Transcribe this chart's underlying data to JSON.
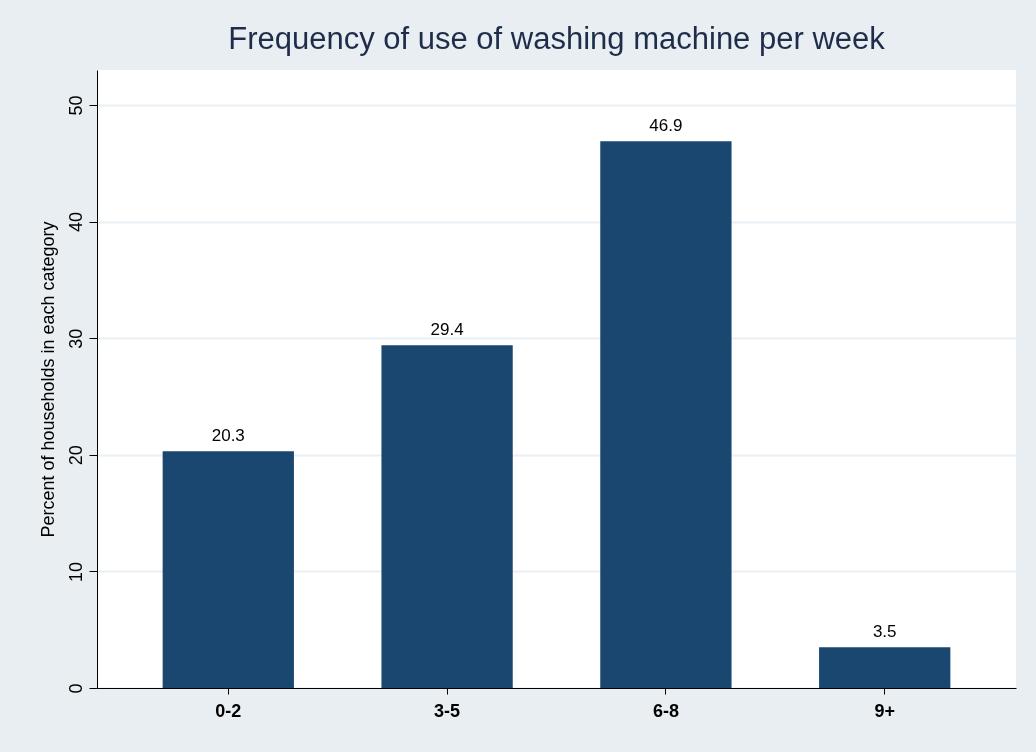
{
  "chart_data": {
    "type": "bar",
    "title": "Frequency of use of washing machine per week",
    "ylabel": "Percent of households in each category",
    "categories": [
      "0-2",
      "3-5",
      "6-8",
      "9+"
    ],
    "values": [
      20.3,
      29.4,
      46.9,
      3.5
    ],
    "color": "#1a476f",
    "ylim": [
      0,
      53
    ],
    "yticks": [
      0,
      10,
      20,
      30,
      40,
      50
    ],
    "grid": "y",
    "data_labels": true
  }
}
